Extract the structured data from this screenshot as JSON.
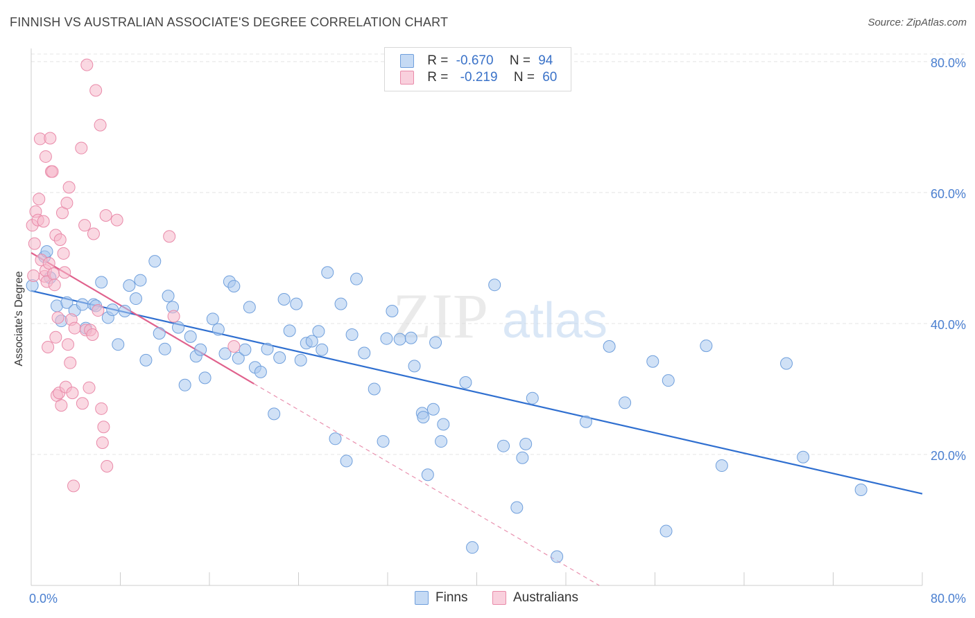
{
  "title": "FINNISH VS AUSTRALIAN ASSOCIATE'S DEGREE CORRELATION CHART",
  "source": "Source: ZipAtlas.com",
  "watermark": {
    "zip": "ZIP",
    "atlas": "atlas"
  },
  "legend": {
    "rows": [
      {
        "r_label": "R =",
        "r_value": "-0.670",
        "n_label": "N =",
        "n_value": "94",
        "color": "#a9c8ef"
      },
      {
        "r_label": "R =",
        "r_value": "-0.219",
        "n_label": "N =",
        "n_value": "60",
        "color": "#f5b8cb"
      }
    ]
  },
  "bottom_legend": {
    "finns": "Finns",
    "australians": "Australians"
  },
  "chart_data": {
    "type": "scatter",
    "title": "FINNISH VS AUSTRALIAN ASSOCIATE'S DEGREE CORRELATION CHART",
    "xlabel": "",
    "ylabel": "Associate's Degree",
    "xlim": [
      0,
      80
    ],
    "ylim": [
      0,
      82
    ],
    "x_tick_labels": [
      "0.0%",
      "80.0%"
    ],
    "y_ticks": [
      20,
      40,
      60,
      80
    ],
    "y_tick_labels": [
      "20.0%",
      "40.0%",
      "60.0%",
      "80.0%"
    ],
    "grid": true,
    "legend_position": "top-center",
    "series": [
      {
        "name": "Finns",
        "color": "#a9c8ef",
        "stroke": "#6f9fdc",
        "trend": {
          "x": [
            0,
            80
          ],
          "y": [
            45.0,
            14.0
          ],
          "color": "#2f6fd0"
        },
        "points": [
          [
            0.1,
            45.8
          ],
          [
            1.2,
            50.2
          ],
          [
            1.4,
            51.0
          ],
          [
            1.7,
            47.0
          ],
          [
            2.3,
            42.7
          ],
          [
            2.7,
            40.4
          ],
          [
            3.2,
            43.2
          ],
          [
            3.9,
            42.0
          ],
          [
            4.6,
            42.9
          ],
          [
            4.9,
            39.3
          ],
          [
            5.6,
            42.9
          ],
          [
            5.8,
            42.7
          ],
          [
            6.3,
            46.3
          ],
          [
            6.9,
            40.9
          ],
          [
            7.3,
            42.1
          ],
          [
            7.8,
            36.8
          ],
          [
            8.4,
            41.9
          ],
          [
            8.8,
            45.8
          ],
          [
            9.4,
            43.8
          ],
          [
            9.8,
            46.6
          ],
          [
            10.3,
            34.4
          ],
          [
            11.1,
            49.5
          ],
          [
            11.5,
            38.5
          ],
          [
            12.0,
            36.1
          ],
          [
            12.3,
            44.2
          ],
          [
            12.7,
            42.5
          ],
          [
            13.2,
            39.4
          ],
          [
            13.8,
            30.6
          ],
          [
            14.3,
            38.0
          ],
          [
            14.8,
            35.0
          ],
          [
            15.2,
            36.0
          ],
          [
            15.6,
            31.7
          ],
          [
            16.3,
            40.7
          ],
          [
            16.8,
            39.1
          ],
          [
            17.4,
            35.4
          ],
          [
            17.8,
            46.4
          ],
          [
            18.2,
            45.7
          ],
          [
            18.6,
            34.7
          ],
          [
            19.2,
            36.0
          ],
          [
            19.6,
            42.5
          ],
          [
            20.1,
            33.3
          ],
          [
            20.6,
            32.6
          ],
          [
            21.2,
            36.1
          ],
          [
            21.8,
            26.2
          ],
          [
            22.3,
            34.8
          ],
          [
            22.7,
            43.7
          ],
          [
            23.2,
            38.9
          ],
          [
            23.8,
            43.0
          ],
          [
            24.2,
            34.4
          ],
          [
            24.7,
            37.0
          ],
          [
            25.2,
            37.3
          ],
          [
            25.8,
            38.8
          ],
          [
            26.1,
            36.0
          ],
          [
            26.6,
            47.8
          ],
          [
            27.3,
            22.4
          ],
          [
            27.8,
            43.0
          ],
          [
            28.3,
            19.0
          ],
          [
            28.8,
            38.3
          ],
          [
            29.2,
            46.8
          ],
          [
            29.9,
            35.5
          ],
          [
            30.8,
            30.0
          ],
          [
            31.6,
            22.0
          ],
          [
            31.9,
            37.7
          ],
          [
            32.4,
            41.9
          ],
          [
            33.1,
            37.6
          ],
          [
            34.1,
            37.8
          ],
          [
            34.4,
            33.5
          ],
          [
            35.1,
            26.3
          ],
          [
            35.2,
            25.7
          ],
          [
            35.6,
            16.9
          ],
          [
            36.1,
            26.9
          ],
          [
            36.3,
            37.1
          ],
          [
            36.8,
            22.0
          ],
          [
            37.0,
            24.6
          ],
          [
            39.0,
            31.0
          ],
          [
            39.6,
            5.8
          ],
          [
            41.6,
            45.9
          ],
          [
            42.4,
            21.3
          ],
          [
            43.6,
            11.9
          ],
          [
            44.1,
            19.5
          ],
          [
            44.4,
            21.6
          ],
          [
            45.0,
            28.6
          ],
          [
            47.2,
            4.4
          ],
          [
            49.8,
            25.0
          ],
          [
            51.9,
            36.5
          ],
          [
            53.3,
            27.9
          ],
          [
            55.8,
            34.2
          ],
          [
            57.0,
            8.3
          ],
          [
            57.2,
            31.3
          ],
          [
            60.6,
            36.6
          ],
          [
            62.0,
            18.3
          ],
          [
            67.8,
            33.9
          ],
          [
            69.3,
            19.6
          ],
          [
            74.5,
            14.6
          ]
        ]
      },
      {
        "name": "Australians",
        "color": "#f5b8cb",
        "stroke": "#e98aa9",
        "trend": {
          "x": [
            0,
            20
          ],
          "y": [
            50.8,
            30.8
          ],
          "color": "#e0628d"
        },
        "trend_extension": {
          "x": [
            20,
            51
          ],
          "y": [
            30.8,
            0.0
          ]
        },
        "points": [
          [
            0.1,
            55.0
          ],
          [
            0.3,
            52.2
          ],
          [
            0.4,
            57.1
          ],
          [
            0.6,
            55.8
          ],
          [
            0.7,
            59.0
          ],
          [
            0.8,
            68.2
          ],
          [
            0.9,
            49.7
          ],
          [
            1.1,
            55.6
          ],
          [
            1.2,
            47.2
          ],
          [
            1.3,
            48.1
          ],
          [
            1.3,
            65.5
          ],
          [
            1.4,
            46.4
          ],
          [
            1.5,
            36.4
          ],
          [
            1.6,
            49.2
          ],
          [
            1.7,
            68.3
          ],
          [
            1.8,
            63.2
          ],
          [
            1.9,
            63.2
          ],
          [
            2.0,
            47.6
          ],
          [
            2.1,
            45.9
          ],
          [
            2.2,
            37.9
          ],
          [
            2.2,
            53.5
          ],
          [
            2.3,
            29.0
          ],
          [
            2.4,
            40.9
          ],
          [
            2.5,
            29.4
          ],
          [
            2.6,
            52.8
          ],
          [
            2.7,
            27.5
          ],
          [
            2.8,
            56.9
          ],
          [
            2.9,
            50.7
          ],
          [
            3.0,
            47.8
          ],
          [
            3.1,
            30.3
          ],
          [
            3.2,
            58.4
          ],
          [
            3.3,
            36.8
          ],
          [
            3.4,
            60.8
          ],
          [
            3.5,
            34.0
          ],
          [
            3.6,
            40.6
          ],
          [
            3.7,
            29.4
          ],
          [
            3.8,
            15.2
          ],
          [
            3.9,
            39.3
          ],
          [
            4.5,
            66.8
          ],
          [
            4.6,
            27.8
          ],
          [
            4.8,
            55.0
          ],
          [
            4.9,
            39.0
          ],
          [
            5.0,
            79.5
          ],
          [
            5.2,
            30.2
          ],
          [
            5.3,
            39.0
          ],
          [
            5.5,
            38.3
          ],
          [
            5.6,
            53.7
          ],
          [
            5.8,
            75.6
          ],
          [
            6.0,
            42.0
          ],
          [
            6.2,
            70.3
          ],
          [
            6.3,
            27.0
          ],
          [
            6.4,
            21.8
          ],
          [
            6.5,
            24.2
          ],
          [
            6.7,
            56.5
          ],
          [
            6.8,
            18.2
          ],
          [
            7.7,
            55.8
          ],
          [
            12.4,
            53.3
          ],
          [
            12.8,
            41.1
          ],
          [
            18.2,
            36.5
          ],
          [
            0.2,
            47.3
          ]
        ]
      }
    ]
  }
}
